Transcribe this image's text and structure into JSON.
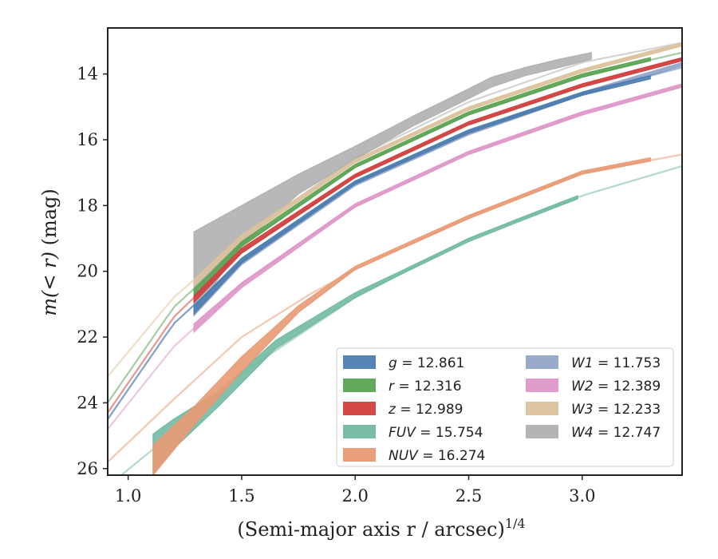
{
  "chart_data": {
    "type": "line",
    "xlabel": "(Semi-major axis r / arcsec)",
    "xlabel_exponent": "1/4",
    "ylabel_prefix": "m(< r)",
    "ylabel_suffix": " (mag)",
    "xlim": [
      0.91,
      3.44
    ],
    "ylim": [
      26.2,
      12.6
    ],
    "y_inverted": true,
    "xticks": [
      1.0,
      1.5,
      2.0,
      2.5,
      3.0
    ],
    "xtick_labels": [
      "1.0",
      "1.5",
      "2.0",
      "2.5",
      "3.0"
    ],
    "yticks": [
      14,
      16,
      18,
      20,
      22,
      24,
      26
    ],
    "ytick_labels": [
      "14",
      "16",
      "18",
      "20",
      "22",
      "24",
      "26"
    ],
    "grid": false,
    "legend_position": "lower-right",
    "legend_columns": 2,
    "series": [
      {
        "name": "g = 12.861",
        "band": "g",
        "total": "12.861",
        "color": "#4c7eb0",
        "model": {
          "x": [
            0.91,
            1.2,
            1.5,
            2.0,
            2.5,
            3.0,
            3.44
          ],
          "y": [
            24.5,
            21.6,
            19.7,
            17.3,
            15.75,
            14.6,
            13.8
          ]
        },
        "band_x": [
          1.29,
          1.5,
          2.0,
          2.5,
          3.0,
          3.3
        ],
        "band_lo": [
          21.3,
          19.75,
          17.35,
          15.8,
          14.65,
          14.15
        ],
        "band_hi": [
          21.05,
          19.6,
          17.25,
          15.7,
          14.55,
          14.05
        ]
      },
      {
        "name": "r = 12.316",
        "band": "r",
        "total": "12.316",
        "color": "#5ba454",
        "model": {
          "x": [
            0.91,
            1.2,
            1.5,
            2.0,
            2.5,
            3.0,
            3.44
          ],
          "y": [
            24.0,
            21.1,
            19.2,
            16.8,
            15.2,
            14.05,
            13.35
          ]
        },
        "band_x": [
          1.29,
          1.5,
          2.0,
          2.5,
          3.0,
          3.3
        ],
        "band_lo": [
          20.75,
          19.25,
          16.85,
          15.25,
          14.1,
          13.6
        ],
        "band_hi": [
          20.55,
          19.1,
          16.75,
          15.15,
          14.0,
          13.5
        ]
      },
      {
        "name": "z = 12.989",
        "band": "z",
        "total": "12.989",
        "color": "#d03f3e",
        "model": {
          "x": [
            0.91,
            1.2,
            1.5,
            2.0,
            2.5,
            3.0,
            3.44
          ],
          "y": [
            24.3,
            21.4,
            19.4,
            17.1,
            15.5,
            14.35,
            13.55
          ]
        },
        "band_x": [
          1.29,
          1.5,
          2.0,
          2.5,
          3.0,
          3.44
        ],
        "band_lo": [
          20.95,
          19.45,
          17.15,
          15.55,
          14.4,
          13.6
        ],
        "band_hi": [
          20.75,
          19.3,
          17.05,
          15.45,
          14.3,
          13.5
        ]
      },
      {
        "name": "FUV = 15.754",
        "band": "FUV",
        "total": "15.754",
        "color": "#72b9a3",
        "model": {
          "x": [
            0.97,
            1.2,
            1.5,
            2.0,
            2.5,
            3.0,
            3.44
          ],
          "y": [
            26.2,
            24.9,
            23.1,
            20.8,
            19.0,
            17.7,
            16.8
          ]
        },
        "band_x": [
          1.11,
          1.2,
          1.4,
          1.65,
          2.0,
          2.2,
          2.5,
          2.7,
          2.98
        ],
        "band_lo": [
          26.2,
          25.4,
          24.1,
          22.35,
          20.8,
          20.1,
          19.1,
          18.55,
          17.8
        ],
        "band_hi": [
          24.95,
          24.5,
          23.65,
          22.1,
          20.65,
          20.0,
          19.0,
          18.45,
          17.7
        ]
      },
      {
        "name": "NUV = 16.274",
        "band": "NUV",
        "total": "16.274",
        "color": "#e99a74",
        "model": {
          "x": [
            0.91,
            1.2,
            1.5,
            1.8,
            2.0,
            2.5,
            3.0,
            3.44
          ],
          "y": [
            25.8,
            23.9,
            22.0,
            20.7,
            19.95,
            18.35,
            17.0,
            16.45
          ]
        },
        "band_x": [
          1.11,
          1.3,
          1.5,
          1.75,
          2.0,
          2.5,
          3.0,
          3.3
        ],
        "band_lo": [
          26.2,
          24.6,
          23.05,
          21.25,
          19.95,
          18.4,
          17.05,
          16.65
        ],
        "band_hi": [
          25.3,
          24.05,
          22.6,
          21.05,
          19.85,
          18.3,
          16.95,
          16.55
        ]
      },
      {
        "name": "W1 = 11.753",
        "band": "W1",
        "total": "11.753",
        "color": "#94a6c8",
        "model": {
          "x": [
            0.91,
            1.2,
            1.5,
            2.0,
            2.5,
            3.0,
            3.44
          ],
          "y": [
            24.5,
            21.6,
            19.7,
            17.35,
            15.8,
            14.6,
            13.7
          ]
        },
        "band_x": [
          1.29,
          1.5,
          2.0,
          2.5,
          3.0,
          3.44
        ],
        "band_lo": [
          21.35,
          19.8,
          17.4,
          15.85,
          14.65,
          13.75
        ],
        "band_hi": [
          21.1,
          19.65,
          17.3,
          15.75,
          14.55,
          13.65
        ]
      },
      {
        "name": "W2 = 12.389",
        "band": "W2",
        "total": "12.389",
        "color": "#de97c8",
        "model": {
          "x": [
            0.91,
            1.2,
            1.5,
            2.0,
            2.5,
            3.0,
            3.44
          ],
          "y": [
            24.8,
            22.3,
            20.4,
            18.0,
            16.4,
            15.2,
            14.35
          ]
        },
        "band_x": [
          1.29,
          1.5,
          2.0,
          2.5,
          3.0,
          3.44
        ],
        "band_lo": [
          21.85,
          20.5,
          18.05,
          16.45,
          15.25,
          14.4
        ],
        "band_hi": [
          21.6,
          20.35,
          17.95,
          16.35,
          15.15,
          14.3
        ]
      },
      {
        "name": "W3 = 12.233",
        "band": "W3",
        "total": "12.233",
        "color": "#dcc29d",
        "model": {
          "x": [
            0.91,
            1.2,
            1.5,
            2.0,
            2.5,
            3.0,
            3.44
          ],
          "y": [
            23.2,
            20.8,
            19.0,
            16.65,
            15.05,
            13.9,
            13.1
          ]
        },
        "band_x": [
          1.29,
          1.5,
          2.0,
          2.5,
          3.0,
          3.44
        ],
        "band_lo": [
          20.45,
          19.05,
          16.7,
          15.1,
          13.95,
          13.15
        ],
        "band_hi": [
          20.25,
          18.9,
          16.6,
          15.0,
          13.85,
          13.05
        ]
      },
      {
        "name": "W4 = 12.747",
        "band": "W4",
        "total": "12.747",
        "color": "#b0b0b0",
        "model": {
          "x": [
            1.29,
            1.6,
            2.0,
            2.5,
            3.0,
            3.44
          ],
          "y": [
            20.4,
            18.5,
            16.55,
            14.85,
            13.65,
            13.05
          ]
        },
        "band_x": [
          1.29,
          1.5,
          1.75,
          2.0,
          2.25,
          2.5,
          2.6,
          2.75,
          2.9,
          3.04
        ],
        "band_lo": [
          21.3,
          19.2,
          17.65,
          16.6,
          15.6,
          14.75,
          14.4,
          14.05,
          13.8,
          13.55
        ],
        "band_hi": [
          18.8,
          18.0,
          17.05,
          16.2,
          15.3,
          14.45,
          14.1,
          13.8,
          13.55,
          13.35
        ]
      }
    ]
  }
}
